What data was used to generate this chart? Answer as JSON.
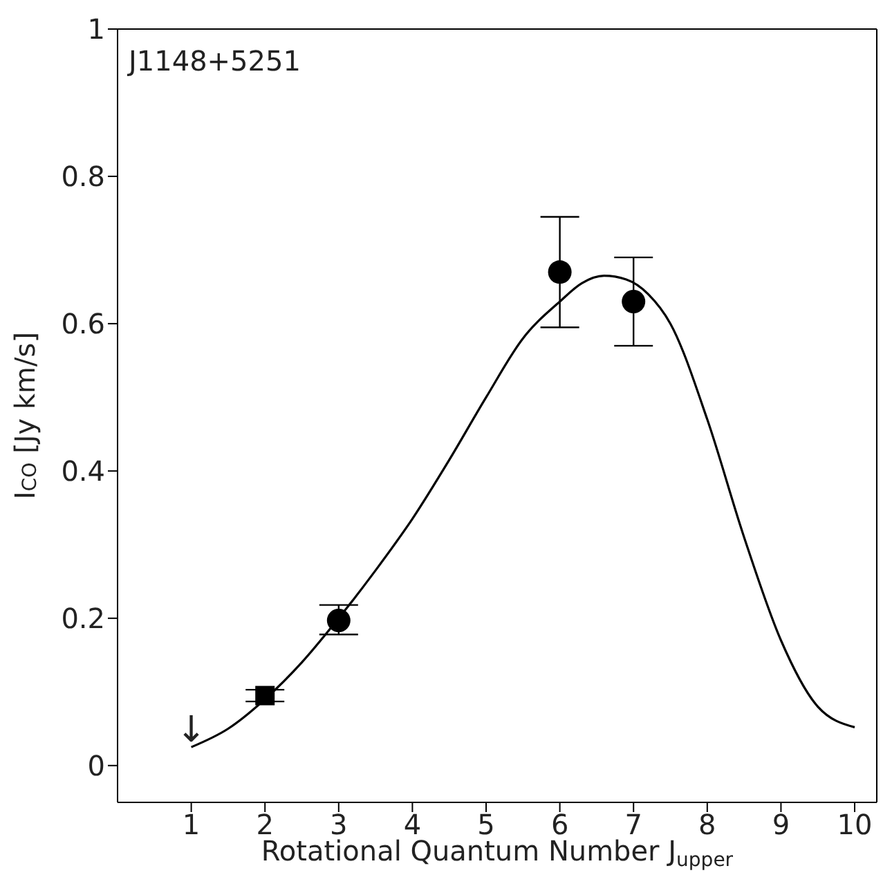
{
  "chart_data": {
    "type": "scatter",
    "xlabel": "Rotational Quantum Number J$_{upper}$",
    "ylabel": "I$_{CO}$ [Jy km/s]",
    "xlim": [
      0,
      10.3
    ],
    "xticks": [
      1,
      2,
      3,
      4,
      5,
      6,
      7,
      8,
      9,
      10
    ],
    "ylim": [
      -0.05,
      1
    ],
    "yticks": [
      0,
      0.2,
      0.4,
      0.6,
      0.8,
      1
    ],
    "grid": false,
    "legend": false,
    "annotations": [
      "J1148+5251",
      {
        "text": "↓",
        "x": 1,
        "y": 0.025
      }
    ],
    "series": [
      {
        "marker": "square",
        "color": "#000000",
        "x": [
          2
        ],
        "values": [
          0.095
        ],
        "errors": [
          0.008
        ]
      },
      {
        "marker": "circle",
        "color": "#000000",
        "x": [
          3,
          6,
          7
        ],
        "values": [
          0.197,
          0.67,
          0.63
        ],
        "errors": [
          [
            0.178,
            0.218
          ],
          [
            0.595,
            0.745
          ],
          [
            0.57,
            0.69
          ]
        ]
      },
      {
        "type": "line",
        "marker": "none",
        "line_style": "solid",
        "color": "#000000",
        "x": [
          1,
          1.5,
          2,
          2.5,
          3,
          3.5,
          4,
          4.5,
          5,
          5.5,
          6,
          6.3,
          6.6,
          6.9,
          7.2,
          7.5,
          8,
          8.5,
          9,
          9.5,
          10
        ],
        "values": [
          0.025,
          0.05,
          0.09,
          0.14,
          0.2,
          0.265,
          0.335,
          0.415,
          0.5,
          0.58,
          0.63,
          0.655,
          0.665,
          0.66,
          0.64,
          0.6,
          0.47,
          0.31,
          0.17,
          0.08,
          0.052
        ]
      }
    ]
  }
}
